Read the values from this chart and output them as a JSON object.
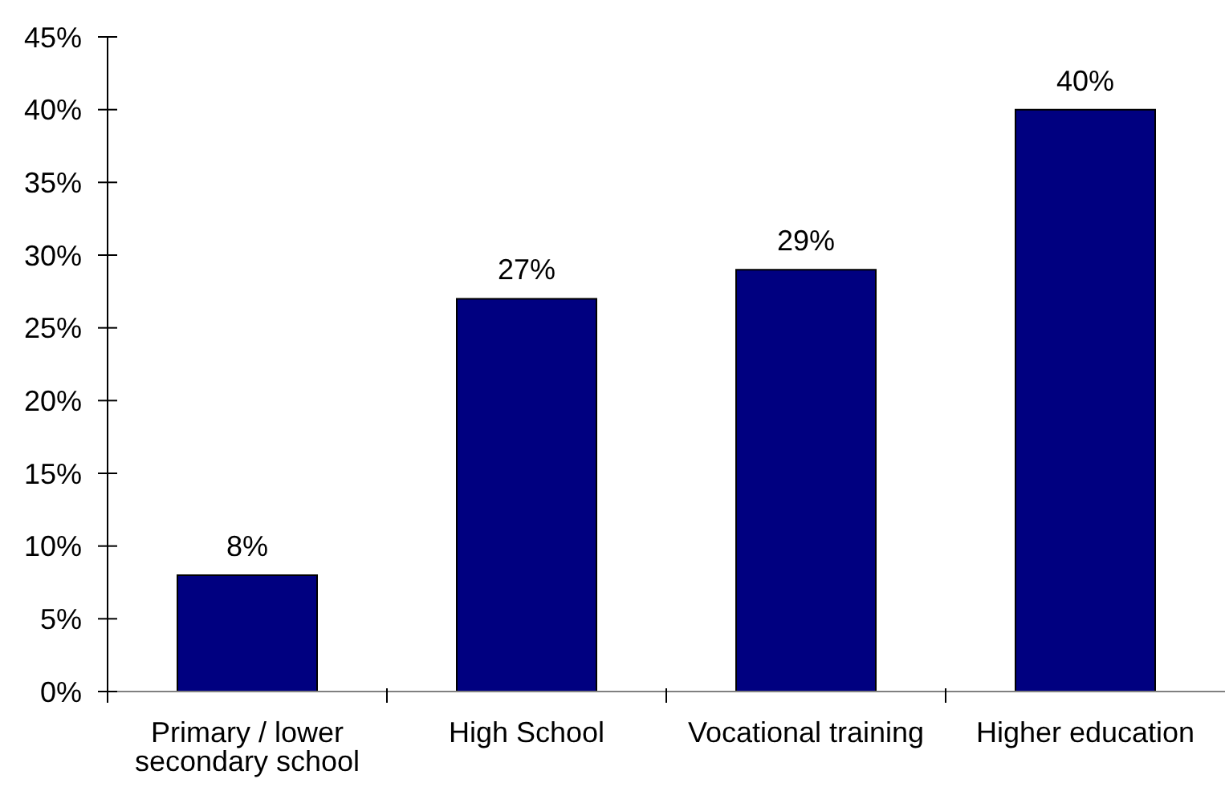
{
  "chart_data": {
    "type": "bar",
    "categories": [
      "Primary / lower secondary school",
      "High School",
      "Vocational training",
      "Higher education"
    ],
    "values": [
      8,
      27,
      29,
      40
    ],
    "color": "#000080",
    "value_labels": [
      "8%",
      "27%",
      "29%",
      "40%"
    ],
    "ylim": [
      0,
      45
    ],
    "yticks": [
      {
        "value": 0,
        "label": "0%"
      },
      {
        "value": 5,
        "label": "5%"
      },
      {
        "value": 10,
        "label": "10%"
      },
      {
        "value": 15,
        "label": "15%"
      },
      {
        "value": 20,
        "label": "20%"
      },
      {
        "value": 25,
        "label": "25%"
      },
      {
        "value": 30,
        "label": "30%"
      },
      {
        "value": 35,
        "label": "35%"
      },
      {
        "value": 40,
        "label": "40%"
      },
      {
        "value": 45,
        "label": "45%"
      }
    ]
  }
}
